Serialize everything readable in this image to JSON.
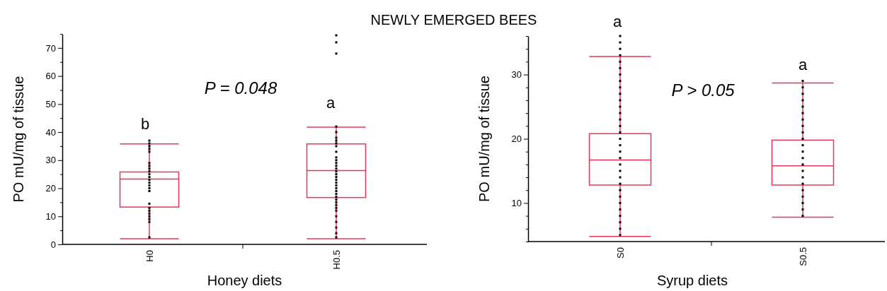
{
  "chart_data": [
    {
      "type": "box",
      "title": "NEWLY EMERGED BEES",
      "xlabel": "Honey diets",
      "ylabel": "PO mU/mg of tissue",
      "categories": [
        "H0",
        "H0.5"
      ],
      "ylim": [
        0,
        75
      ],
      "yticks": [
        0,
        {
          "value": 5,
          "label": null
        },
        10,
        {
          "value": 15,
          "label": null
        },
        20,
        {
          "value": 25,
          "label": null
        },
        30,
        {
          "value": 35,
          "label": null
        },
        40,
        {
          "value": 45,
          "label": null
        },
        50,
        {
          "value": 55,
          "label": null
        },
        60,
        {
          "value": 65,
          "label": null
        },
        70,
        {
          "value": 75,
          "label": null
        }
      ],
      "series": [
        {
          "color": "#e8365a",
          "boxes": [
            {
              "low": 2,
              "q1": 13.3,
              "median": 23.3,
              "q3": 25.8,
              "high": 35.8
            },
            {
              "low": 2,
              "q1": 16.7,
              "median": 26.3,
              "q3": 35.8,
              "high": 41.8
            }
          ]
        },
        {
          "type": "scatter",
          "color": "#000000",
          "x": [
            "H0",
            "H0",
            "H0",
            "H0",
            "H0",
            "H0",
            "H0",
            "H0",
            "H0",
            "H0",
            "H0",
            "H0",
            "H0",
            "H0",
            "H0",
            "H0",
            "H0",
            "H0",
            "H0",
            "H0",
            "H0",
            "H0",
            "H0",
            "H0"
          ],
          "values": [
            2.5,
            8,
            9,
            10,
            11,
            12,
            13,
            14.5,
            19,
            20,
            21,
            22,
            23,
            24,
            25,
            26,
            27,
            28,
            29,
            33,
            34,
            35,
            36,
            37
          ]
        },
        {
          "type": "scatter",
          "color": "#000000",
          "x": [
            "H0.5",
            "H0.5",
            "H0.5",
            "H0.5",
            "H0.5",
            "H0.5",
            "H0.5",
            "H0.5",
            "H0.5",
            "H0.5",
            "H0.5",
            "H0.5",
            "H0.5",
            "H0.5",
            "H0.5",
            "H0.5",
            "H0.5",
            "H0.5",
            "H0.5",
            "H0.5",
            "H0.5",
            "H0.5",
            "H0.5",
            "H0.5",
            "H0.5",
            "H0.5",
            "H0.5",
            "H0.5",
            "H0.5",
            "H0.5",
            "H0.5",
            "H0.5",
            "H0.5",
            "H0.5",
            "H0.5"
          ],
          "values": [
            2.5,
            4,
            6,
            8,
            10,
            12,
            13,
            14,
            15,
            16,
            17,
            18,
            19,
            20,
            21,
            22,
            23,
            24,
            25,
            26,
            27,
            28,
            29,
            30,
            31,
            33,
            35,
            36,
            37,
            38,
            40,
            42,
            68,
            72,
            74.5
          ]
        }
      ],
      "marker": "square",
      "grid": false,
      "annotations": [
        "b",
        "a",
        "P = 0.048"
      ]
    },
    {
      "type": "box",
      "xlabel": "Syrup diets",
      "ylabel": "PO mU/mg of tissue",
      "categories": [
        "S0",
        "S0.5"
      ],
      "ylim": [
        4,
        36
      ],
      "yticks": [
        {
          "value": 4,
          "label": null
        },
        {
          "value": 6,
          "label": null
        },
        {
          "value": 8,
          "label": null
        },
        10,
        {
          "value": 12,
          "label": null
        },
        {
          "value": 14,
          "label": null
        },
        {
          "value": 16,
          "label": null
        },
        {
          "value": 18,
          "label": null
        },
        20,
        {
          "value": 22,
          "label": null
        },
        {
          "value": 24,
          "label": null
        },
        {
          "value": 26,
          "label": null
        },
        {
          "value": 28,
          "label": null
        },
        30,
        {
          "value": 32,
          "label": null
        },
        {
          "value": 34,
          "label": null
        },
        {
          "value": 36,
          "label": null
        }
      ],
      "series": [
        {
          "color": "#e8365a",
          "boxes": [
            {
              "low": 4.8,
              "q1": 12.8,
              "median": 16.7,
              "q3": 20.8,
              "high": 32.8
            },
            {
              "low": 7.8,
              "q1": 12.8,
              "median": 15.8,
              "q3": 19.8,
              "high": 28.7
            }
          ]
        },
        {
          "type": "scatter",
          "color": "#000000",
          "x": [
            "S0",
            "S0",
            "S0",
            "S0",
            "S0",
            "S0",
            "S0",
            "S0",
            "S0",
            "S0",
            "S0",
            "S0",
            "S0",
            "S0",
            "S0",
            "S0",
            "S0",
            "S0",
            "S0",
            "S0",
            "S0",
            "S0",
            "S0",
            "S0",
            "S0",
            "S0",
            "S0",
            "S0",
            "S0",
            "S0",
            "S0",
            "S0"
          ],
          "values": [
            5,
            6,
            7,
            8,
            9,
            10,
            11,
            12,
            13,
            14,
            15,
            16,
            17,
            18,
            19,
            20,
            21,
            22,
            23,
            24,
            25,
            26,
            27,
            28,
            29,
            30,
            31,
            32,
            33,
            34,
            35,
            36
          ]
        },
        {
          "type": "scatter",
          "color": "#000000",
          "x": [
            "S0.5",
            "S0.5",
            "S0.5",
            "S0.5",
            "S0.5",
            "S0.5",
            "S0.5",
            "S0.5",
            "S0.5",
            "S0.5",
            "S0.5",
            "S0.5",
            "S0.5",
            "S0.5",
            "S0.5",
            "S0.5",
            "S0.5",
            "S0.5",
            "S0.5",
            "S0.5",
            "S0.5",
            "S0.5"
          ],
          "values": [
            8,
            9,
            10,
            11,
            12,
            13,
            14,
            15,
            16,
            17,
            18,
            19,
            20,
            21,
            22,
            23,
            24,
            25,
            26,
            27,
            28,
            29
          ]
        }
      ],
      "marker": "square",
      "grid": false,
      "annotations": [
        "a",
        "a",
        "P > 0.05"
      ]
    }
  ]
}
